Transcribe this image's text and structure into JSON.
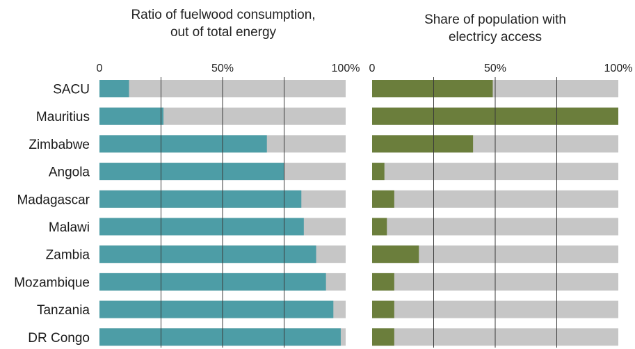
{
  "chart_data": [
    {
      "type": "bar",
      "orientation": "horizontal",
      "stacked_to_100": true,
      "title_lines": [
        "Ratio of fuelwood consumption,",
        "out of total energy"
      ],
      "xticks": [
        "0",
        "50%",
        "100%"
      ],
      "xlim": [
        0,
        100
      ],
      "grid": true,
      "categories": [
        "SACU",
        "Mauritius",
        "Zimbabwe",
        "Angola",
        "Madagascar",
        "Malawi",
        "Zambia",
        "Mozambique",
        "Tanzania",
        "DR Congo"
      ],
      "values": [
        12,
        26,
        68,
        75,
        82,
        83,
        88,
        92,
        95,
        98
      ],
      "colors": {
        "value": "#4d9da6",
        "remainder": "#c6c6c6"
      }
    },
    {
      "type": "bar",
      "orientation": "horizontal",
      "stacked_to_100": true,
      "title_lines": [
        "Share of population with",
        "electricy access"
      ],
      "xticks": [
        "0",
        "50%",
        "100%"
      ],
      "xlim": [
        0,
        100
      ],
      "grid": true,
      "categories": [
        "SACU",
        "Mauritius",
        "Zimbabwe",
        "Angola",
        "Madagascar",
        "Malawi",
        "Zambia",
        "Mozambique",
        "Tanzania",
        "DR Congo"
      ],
      "values": [
        49,
        100,
        41,
        5,
        9,
        6,
        19,
        9,
        9,
        9
      ],
      "colors": {
        "value": "#6b7e3c",
        "remainder": "#c6c6c6"
      }
    }
  ]
}
